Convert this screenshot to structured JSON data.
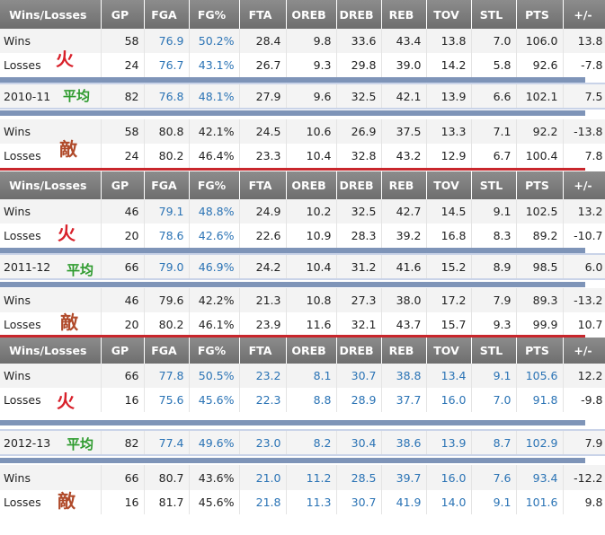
{
  "columns": [
    "Wins/Losses",
    "GP",
    "FGA",
    "FG%",
    "FTA",
    "OREB",
    "DREB",
    "REB",
    "TOV",
    "STL",
    "PTS",
    "+/-"
  ],
  "annotations": {
    "fire": "火",
    "avg": "平均",
    "enemy": "敵"
  },
  "seasons": [
    {
      "own": [
        {
          "label": "Wins",
          "gp": "58",
          "fga": "76.9",
          "fg": "50.2%",
          "fta": "28.4",
          "oreb": "9.8",
          "dreb": "33.6",
          "reb": "43.4",
          "tov": "13.8",
          "stl": "7.0",
          "pts": "106.0",
          "pm": "13.8"
        },
        {
          "label": "Losses",
          "gp": "24",
          "fga": "76.7",
          "fg": "43.1%",
          "fta": "26.7",
          "oreb": "9.3",
          "dreb": "29.8",
          "reb": "39.0",
          "tov": "14.2",
          "stl": "5.8",
          "pts": "92.6",
          "pm": "-7.8"
        }
      ],
      "avg": {
        "label": "2010-11",
        "gp": "82",
        "fga": "76.8",
        "fg": "48.1%",
        "fta": "27.9",
        "oreb": "9.6",
        "dreb": "32.5",
        "reb": "42.1",
        "tov": "13.9",
        "stl": "6.6",
        "pts": "102.1",
        "pm": "7.5"
      },
      "opp": [
        {
          "label": "Wins",
          "gp": "58",
          "fga": "80.8",
          "fg": "42.1%",
          "fta": "24.5",
          "oreb": "10.6",
          "dreb": "26.9",
          "reb": "37.5",
          "tov": "13.3",
          "stl": "7.1",
          "pts": "92.2",
          "pm": "-13.8"
        },
        {
          "label": "Losses",
          "gp": "24",
          "fga": "80.2",
          "fg": "46.4%",
          "fta": "23.3",
          "oreb": "10.4",
          "dreb": "32.8",
          "reb": "43.2",
          "tov": "12.9",
          "stl": "6.7",
          "pts": "100.4",
          "pm": "7.8"
        }
      ]
    },
    {
      "own": [
        {
          "label": "Wins",
          "gp": "46",
          "fga": "79.1",
          "fg": "48.8%",
          "fta": "24.9",
          "oreb": "10.2",
          "dreb": "32.5",
          "reb": "42.7",
          "tov": "14.5",
          "stl": "9.1",
          "pts": "102.5",
          "pm": "13.2"
        },
        {
          "label": "Losses",
          "gp": "20",
          "fga": "78.6",
          "fg": "42.6%",
          "fta": "22.6",
          "oreb": "10.9",
          "dreb": "28.3",
          "reb": "39.2",
          "tov": "16.8",
          "stl": "8.3",
          "pts": "89.2",
          "pm": "-10.7"
        }
      ],
      "avg": {
        "label": "2011-12",
        "gp": "66",
        "fga": "79.0",
        "fg": "46.9%",
        "fta": "24.2",
        "oreb": "10.4",
        "dreb": "31.2",
        "reb": "41.6",
        "tov": "15.2",
        "stl": "8.9",
        "pts": "98.5",
        "pm": "6.0"
      },
      "opp": [
        {
          "label": "Wins",
          "gp": "46",
          "fga": "79.6",
          "fg": "42.2%",
          "fta": "21.3",
          "oreb": "10.8",
          "dreb": "27.3",
          "reb": "38.0",
          "tov": "17.2",
          "stl": "7.9",
          "pts": "89.3",
          "pm": "-13.2"
        },
        {
          "label": "Losses",
          "gp": "20",
          "fga": "80.2",
          "fg": "46.1%",
          "fta": "23.9",
          "oreb": "11.6",
          "dreb": "32.1",
          "reb": "43.7",
          "tov": "15.7",
          "stl": "9.3",
          "pts": "99.9",
          "pm": "10.7"
        }
      ]
    },
    {
      "own": [
        {
          "label": "Wins",
          "gp": "66",
          "fga": "77.8",
          "fg": "50.5%",
          "fta": "23.2",
          "oreb": "8.1",
          "dreb": "30.7",
          "reb": "38.8",
          "tov": "13.4",
          "stl": "9.1",
          "pts": "105.6",
          "pm": "12.2"
        },
        {
          "label": "Losses",
          "gp": "16",
          "fga": "75.6",
          "fg": "45.6%",
          "fta": "22.3",
          "oreb": "8.8",
          "dreb": "28.9",
          "reb": "37.7",
          "tov": "16.0",
          "stl": "7.0",
          "pts": "91.8",
          "pm": "-9.8"
        }
      ],
      "avg": {
        "label": "2012-13",
        "gp": "82",
        "fga": "77.4",
        "fg": "49.6%",
        "fta": "23.0",
        "oreb": "8.2",
        "dreb": "30.4",
        "reb": "38.6",
        "tov": "13.9",
        "stl": "8.7",
        "pts": "102.9",
        "pm": "7.9"
      },
      "opp": [
        {
          "label": "Wins",
          "gp": "66",
          "fga": "80.7",
          "fg": "43.6%",
          "fta": "21.0",
          "oreb": "11.2",
          "dreb": "28.5",
          "reb": "39.7",
          "tov": "16.0",
          "stl": "7.6",
          "pts": "93.4",
          "pm": "-12.2"
        },
        {
          "label": "Losses",
          "gp": "16",
          "fga": "81.7",
          "fg": "45.6%",
          "fta": "21.8",
          "oreb": "11.3",
          "dreb": "30.7",
          "reb": "41.9",
          "tov": "14.0",
          "stl": "9.1",
          "pts": "101.6",
          "pm": "9.8"
        }
      ]
    }
  ]
}
